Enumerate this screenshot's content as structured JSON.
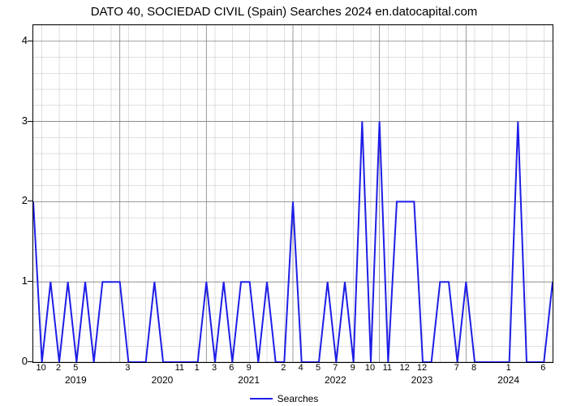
{
  "title": "DATO 40, SOCIEDAD CIVIL (Spain) Searches 2024 en.datocapital.com",
  "chart": {
    "type": "line",
    "line_color": "#1e1ee6",
    "line_width": 2,
    "background_color": "#ffffff",
    "grid_major_color": "#808080",
    "grid_minor_color": "#bfbfbf",
    "ylim": [
      0,
      4.2
    ],
    "y_ticks": [
      0,
      1,
      2,
      3,
      4
    ],
    "x_minor_labels": [
      "10",
      "2",
      "5",
      "",
      "",
      "3",
      "",
      "",
      "11",
      "1",
      "3",
      "6",
      "9",
      "",
      "2",
      "4",
      "5",
      "7",
      "9",
      "10",
      "11",
      "12",
      "12",
      "",
      "7",
      "8",
      "",
      "1",
      "",
      "6"
    ],
    "x_year_labels": [
      {
        "label": "2019",
        "index": 2
      },
      {
        "label": "2020",
        "index": 7
      },
      {
        "label": "2021",
        "index": 12
      },
      {
        "label": "2022",
        "index": 17
      },
      {
        "label": "2023",
        "index": 22
      },
      {
        "label": "2024",
        "index": 27
      }
    ],
    "values": [
      2,
      0,
      1,
      0,
      1,
      0,
      1,
      0,
      1,
      1,
      1,
      0,
      0,
      0,
      1,
      0,
      0,
      0,
      0,
      0,
      1,
      0,
      1,
      0,
      1,
      1,
      0,
      1,
      0,
      0,
      2,
      0,
      0,
      0,
      1,
      0,
      1,
      0,
      3,
      0,
      3,
      0,
      2,
      2,
      2,
      0,
      0,
      1,
      1,
      0,
      1,
      0,
      0,
      0,
      0,
      0,
      3,
      0,
      0,
      0,
      1
    ]
  },
  "legend": {
    "label": "Searches"
  }
}
